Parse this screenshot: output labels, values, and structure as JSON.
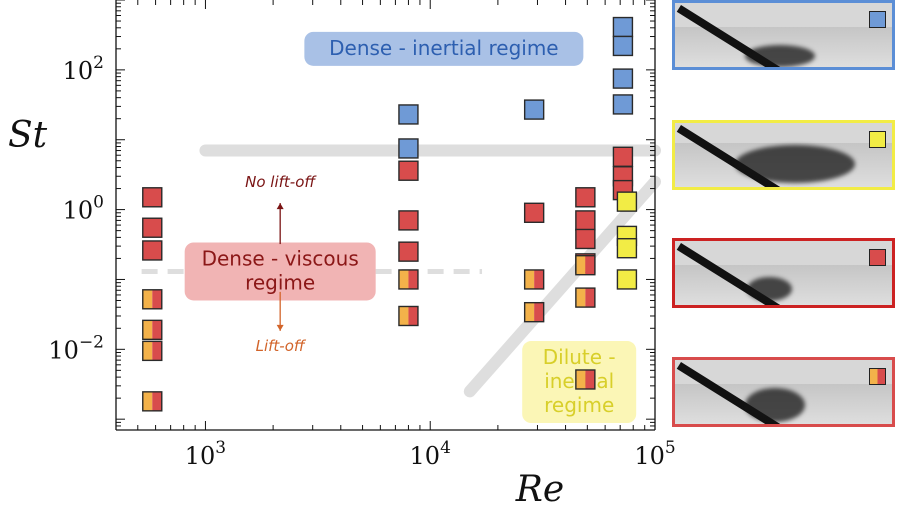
{
  "chart_data": {
    "type": "scatter",
    "xlabel": "Re",
    "ylabel": "St",
    "x_scale": "log",
    "y_scale": "log",
    "xlim": [
      400,
      100000
    ],
    "ylim": [
      0.0007,
      1000
    ],
    "x_ticks": [
      {
        "value": 1000,
        "label": "10^3"
      },
      {
        "value": 10000,
        "label": "10^4"
      },
      {
        "value": 100000,
        "label": "10^5"
      }
    ],
    "y_ticks": [
      {
        "value": 0.01,
        "label": "10^-2"
      },
      {
        "value": 1,
        "label": "10^0"
      },
      {
        "value": 100,
        "label": "10^2"
      }
    ],
    "colors": {
      "blue": "#6f9ad6",
      "red": "#d84c4c",
      "yellow": "#f2ec45",
      "orange": "#f3b24a",
      "edge": "#2a2a2a",
      "boundary": "#dedede"
    },
    "series": [
      {
        "marker": "blue",
        "points": [
          [
            8000,
            23
          ],
          [
            8000,
            7.5
          ],
          [
            29000,
            27
          ],
          [
            72000,
            410
          ],
          [
            72000,
            220
          ],
          [
            72000,
            75
          ],
          [
            72000,
            32
          ]
        ]
      },
      {
        "marker": "red",
        "points": [
          [
            580,
            1.5
          ],
          [
            580,
            0.55
          ],
          [
            580,
            0.26
          ],
          [
            8000,
            3.6
          ],
          [
            8000,
            0.7
          ],
          [
            8000,
            0.25
          ],
          [
            29000,
            0.9
          ],
          [
            49000,
            1.5
          ],
          [
            49000,
            0.7
          ],
          [
            49000,
            0.38
          ],
          [
            49000,
            0.17
          ],
          [
            72000,
            5.7
          ],
          [
            72000,
            3.0
          ],
          [
            72000,
            1.9
          ]
        ]
      },
      {
        "marker": "yellow",
        "points": [
          [
            75000,
            1.3
          ],
          [
            75000,
            0.42
          ],
          [
            75000,
            0.28
          ],
          [
            75000,
            0.1
          ]
        ]
      },
      {
        "marker": "half",
        "points": [
          [
            580,
            0.052
          ],
          [
            580,
            0.019
          ],
          [
            580,
            0.0095
          ],
          [
            580,
            0.0018
          ],
          [
            8000,
            0.1
          ],
          [
            8000,
            0.03
          ],
          [
            29000,
            0.1
          ],
          [
            29000,
            0.034
          ],
          [
            49000,
            0.16
          ],
          [
            49000,
            0.055
          ],
          [
            49000,
            0.0037
          ]
        ]
      }
    ],
    "boundaries": [
      {
        "style": "solid",
        "points": [
          [
            1000,
            7
          ],
          [
            100000,
            7
          ]
        ]
      },
      {
        "style": "dashed",
        "points": [
          [
            520,
            0.13
          ],
          [
            17000,
            0.13
          ]
        ]
      },
      {
        "style": "solid",
        "points": [
          [
            15000,
            0.0025
          ],
          [
            100000,
            2.5
          ]
        ]
      }
    ],
    "regions": [
      {
        "lines": [
          "Dense - inertial regime"
        ],
        "text_color": "#2d5fb0",
        "fill": "#a9c1e6",
        "at": [
          11500,
          200
        ]
      },
      {
        "lines": [
          "Dense - viscous",
          "regime"
        ],
        "text_color": "#8b1717",
        "fill": "#f1b4b4",
        "at": [
          2150,
          0.13
        ]
      },
      {
        "lines": [
          "Dilute -",
          "inertial",
          "regime"
        ],
        "text_color": "#d8cf2a",
        "fill": "#fbf6b6",
        "at": [
          46000,
          0.0034
        ]
      }
    ],
    "annotations": [
      {
        "text": "No lift-off",
        "color": "#7a1414",
        "arrow": "up",
        "at": [
          2150,
          2.1
        ]
      },
      {
        "text": "Lift-off",
        "color": "#d2642a",
        "arrow": "down",
        "at": [
          2150,
          0.0095
        ]
      }
    ]
  },
  "thumbnails": [
    {
      "marker": "blue",
      "frame_color": "#5b8ed6"
    },
    {
      "marker": "yellow",
      "frame_color": "#f2ec45"
    },
    {
      "marker": "red",
      "frame_color": "#cc2222"
    },
    {
      "marker": "half",
      "frame_color": "#d84c4c"
    }
  ]
}
